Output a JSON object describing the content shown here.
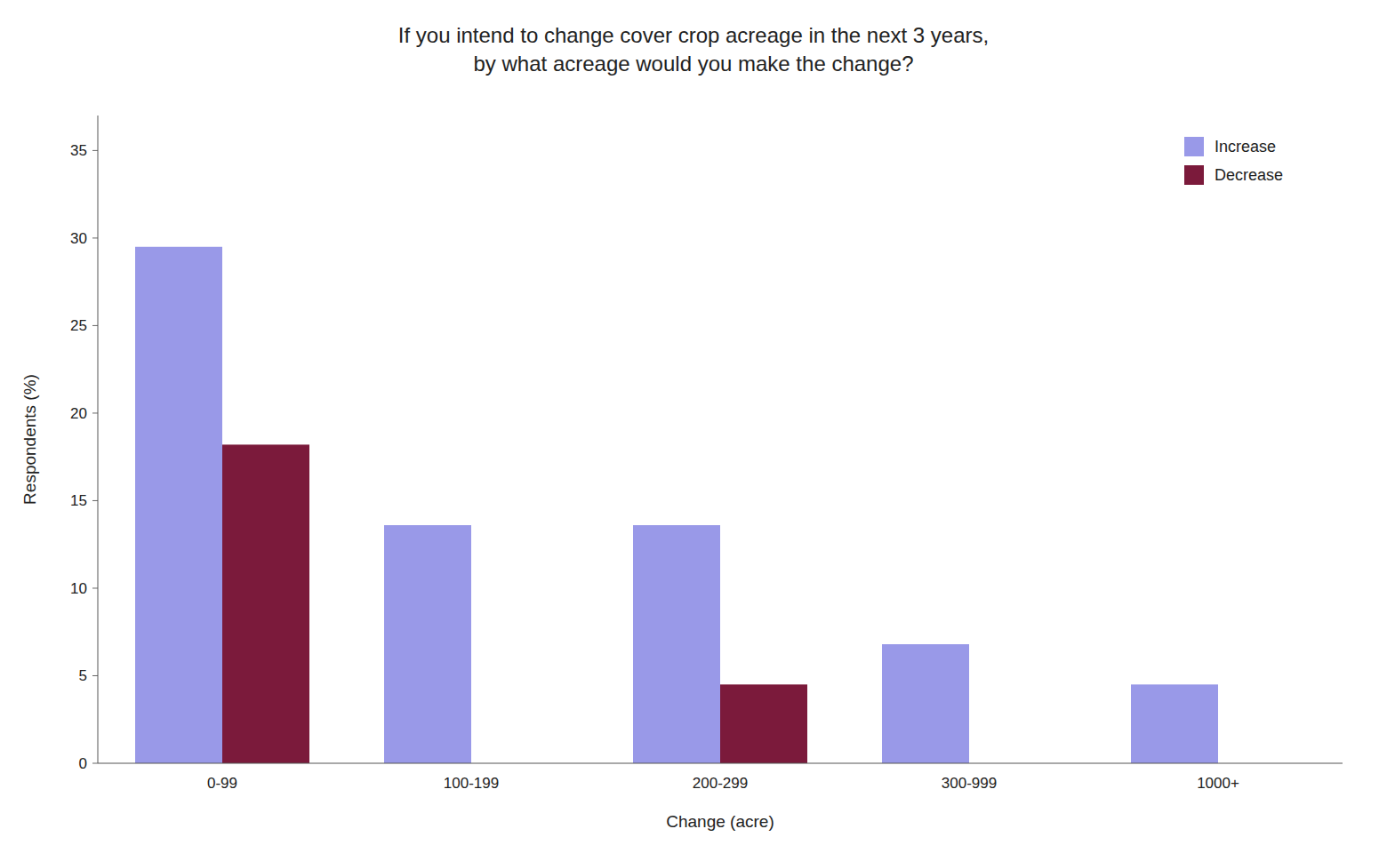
{
  "chart_data": {
    "type": "bar",
    "title": "If you intend to change cover crop acreage in the next 3 years,\nby what acreage would you make the change?",
    "x_label": "Change (acre)",
    "y_label": "Respondents (%)",
    "categories": [
      "0-99",
      "100-199",
      "200-299",
      "300-999",
      "1000+"
    ],
    "series": [
      {
        "name": "Increase",
        "color": "#9999e8",
        "values": [
          29.5,
          13.6,
          13.6,
          6.8,
          4.5
        ]
      },
      {
        "name": "Decrease",
        "color": "#7b1a3b",
        "values": [
          18.2,
          0,
          4.5,
          0,
          0
        ]
      }
    ],
    "ylim": [
      0,
      37
    ],
    "yticks": [
      0,
      5,
      10,
      15,
      20,
      25,
      30,
      35
    ],
    "grid": false,
    "legend": "upper right"
  }
}
